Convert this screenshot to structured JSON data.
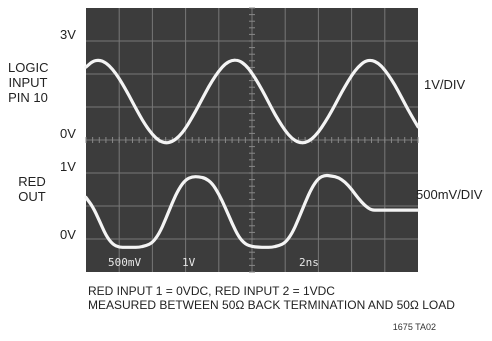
{
  "chart_data": {
    "type": "line",
    "title": "",
    "traces": [
      {
        "label_lines": [
          "LOGIC",
          "INPUT",
          "PIN 10"
        ],
        "top_label": "3V",
        "zero_label": "0V",
        "scale": "1V/DIV",
        "y_range": [
          0,
          3
        ],
        "x": [
          0,
          0.2,
          0.4,
          0.6,
          0.8,
          1.0,
          1.2,
          1.4,
          1.6,
          1.8,
          2.0,
          2.2,
          2.4,
          2.6,
          2.8,
          3.0,
          3.2,
          3.4,
          3.6,
          3.8,
          4.0,
          4.2,
          4.4,
          4.6,
          4.8,
          5.0,
          5.2,
          5.4,
          5.6,
          5.8,
          6.0,
          6.2,
          6.4,
          6.6,
          6.8,
          7.0,
          7.2,
          7.4,
          7.6,
          7.8,
          8.0,
          8.2,
          8.4,
          8.6,
          8.8,
          9.0,
          9.2,
          9.4,
          9.6,
          9.8,
          10.0
        ],
        "values": [
          2.62,
          2.82,
          2.86,
          2.77,
          2.55,
          2.24,
          1.86,
          1.44,
          1.03,
          0.65,
          0.35,
          0.14,
          0.06,
          0.11,
          0.28,
          0.56,
          0.93,
          1.34,
          1.76,
          2.16,
          2.49,
          2.74,
          2.86,
          2.85,
          2.7,
          2.42,
          2.06,
          1.65,
          1.22,
          0.82,
          0.48,
          0.22,
          0.08,
          0.07,
          0.19,
          0.43,
          0.76,
          1.14,
          1.56,
          1.97,
          2.34,
          2.63,
          2.82,
          2.86,
          2.76,
          2.53,
          2.21,
          1.82,
          1.4,
          0.99,
          0.61
        ]
      },
      {
        "label_lines": [
          "RED",
          "OUT"
        ],
        "top_label": "1V",
        "zero_label": "0V",
        "scale": "500mV/DIV",
        "y_range": [
          0,
          1
        ],
        "x": [
          0,
          0.2,
          0.4,
          0.6,
          0.8,
          1.0,
          1.2,
          1.4,
          1.6,
          1.8,
          2.0,
          2.2,
          2.4,
          2.6,
          2.8,
          3.0,
          3.2,
          3.4,
          3.6,
          3.8,
          4.0,
          4.2,
          4.4,
          4.6,
          4.8,
          5.0,
          5.2,
          5.4,
          5.6,
          5.8,
          6.0,
          6.2,
          6.4,
          6.6,
          6.8,
          7.0,
          7.2,
          7.4,
          7.6,
          7.8,
          8.0,
          8.2,
          8.4,
          8.6,
          8.8,
          9.0,
          9.2,
          9.4,
          9.6,
          9.8,
          10.0
        ],
        "values": [
          0.67,
          0.55,
          0.36,
          0.16,
          0.04,
          0.0,
          0.0,
          0.0,
          0.0,
          0.02,
          0.06,
          0.18,
          0.38,
          0.6,
          0.79,
          0.91,
          0.95,
          0.95,
          0.93,
          0.86,
          0.72,
          0.53,
          0.32,
          0.14,
          0.04,
          0.01,
          0.0,
          0.0,
          0.0,
          0.02,
          0.06,
          0.18,
          0.38,
          0.6,
          0.8,
          0.93,
          0.97,
          0.96,
          0.94,
          0.88,
          0.78,
          0.66,
          0.56,
          0.5,
          0.5,
          0.5,
          0.5,
          0.5,
          0.5,
          0.5,
          0.5
        ]
      }
    ],
    "readouts": [
      "500mV",
      "1V",
      "2ns"
    ],
    "notes": [
      "RED INPUT 1 = 0VDC, RED INPUT 2 = 1VDC",
      "MEASURED BETWEEN 50Ω BACK TERMINATION AND 50Ω LOAD"
    ],
    "figure_id": "1675 TA02",
    "grid": true
  }
}
